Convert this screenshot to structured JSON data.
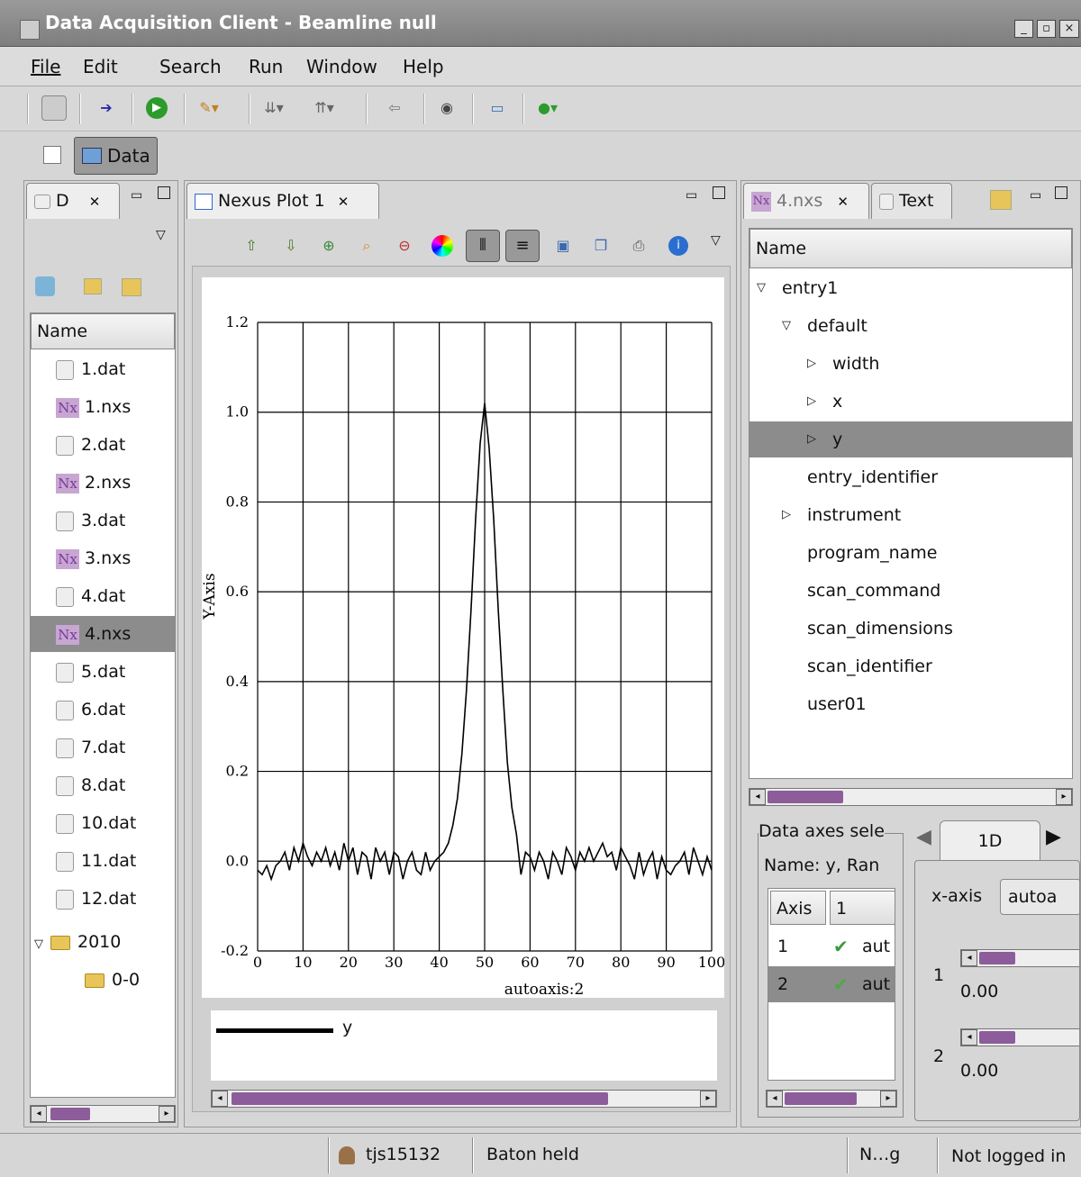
{
  "window": {
    "title": "Data Acquisition Client - Beamline null",
    "buttons": [
      "_",
      "▫",
      "×"
    ]
  },
  "menu": [
    "File",
    "Edit",
    "Search",
    "Run",
    "Window",
    "Help"
  ],
  "perspective": {
    "label": "Data"
  },
  "left_panel": {
    "tab_label": "D",
    "column_header": "Name",
    "files": [
      {
        "name": "1.dat",
        "icon": "dat-file-icon"
      },
      {
        "name": "1.nxs",
        "icon": "nexus-file-icon"
      },
      {
        "name": "2.dat",
        "icon": "dat-file-icon"
      },
      {
        "name": "2.nxs",
        "icon": "nexus-file-icon"
      },
      {
        "name": "3.dat",
        "icon": "dat-file-icon"
      },
      {
        "name": "3.nxs",
        "icon": "nexus-file-icon"
      },
      {
        "name": "4.dat",
        "icon": "dat-file-icon"
      },
      {
        "name": "4.nxs",
        "icon": "nexus-file-icon",
        "selected": true
      },
      {
        "name": "5.dat",
        "icon": "dat-file-icon"
      },
      {
        "name": "6.dat",
        "icon": "dat-file-icon"
      },
      {
        "name": "7.dat",
        "icon": "dat-file-icon"
      },
      {
        "name": "8.dat",
        "icon": "dat-file-icon"
      },
      {
        "name": "10.dat",
        "icon": "dat-file-icon"
      },
      {
        "name": "11.dat",
        "icon": "dat-file-icon"
      },
      {
        "name": "12.dat",
        "icon": "dat-file-icon"
      }
    ],
    "folder": "2010",
    "subfolder": "0-0",
    "nx_glyph": "Nx"
  },
  "plot_panel": {
    "tab_label": "Nexus Plot 1",
    "legend_label": "y"
  },
  "chart_data": {
    "type": "line",
    "xlabel": "autoaxis:2",
    "ylabel": "Y-Axis",
    "xlim": [
      0,
      100
    ],
    "ylim": [
      -0.2,
      1.2
    ],
    "xticks": [
      "0",
      "10",
      "20",
      "30",
      "40",
      "50",
      "60",
      "70",
      "80",
      "90",
      "100"
    ],
    "yticks": [
      "-0.2",
      "0.0",
      "0.2",
      "0.4",
      "0.6",
      "0.8",
      "1.0",
      "1.2"
    ],
    "grid": true,
    "series": [
      {
        "name": "y",
        "x": [
          0,
          1,
          2,
          3,
          4,
          5,
          6,
          7,
          8,
          9,
          10,
          11,
          12,
          13,
          14,
          15,
          16,
          17,
          18,
          19,
          20,
          21,
          22,
          23,
          24,
          25,
          26,
          27,
          28,
          29,
          30,
          31,
          32,
          33,
          34,
          35,
          36,
          37,
          38,
          39,
          40,
          41,
          42,
          43,
          44,
          45,
          46,
          47,
          48,
          49,
          50,
          51,
          52,
          53,
          54,
          55,
          56,
          57,
          58,
          59,
          60,
          61,
          62,
          63,
          64,
          65,
          66,
          67,
          68,
          69,
          70,
          71,
          72,
          73,
          74,
          75,
          76,
          77,
          78,
          79,
          80,
          81,
          82,
          83,
          84,
          85,
          86,
          87,
          88,
          89,
          90,
          91,
          92,
          93,
          94,
          95,
          96,
          97,
          98,
          99,
          100
        ],
        "values": [
          -0.02,
          -0.03,
          -0.01,
          -0.04,
          -0.01,
          0.0,
          0.02,
          -0.02,
          0.03,
          0.0,
          0.04,
          0.01,
          -0.01,
          0.02,
          0.0,
          0.03,
          -0.01,
          0.02,
          -0.02,
          0.04,
          0.0,
          0.03,
          -0.03,
          0.02,
          0.01,
          -0.04,
          0.03,
          0.0,
          0.02,
          -0.03,
          0.02,
          0.01,
          -0.04,
          0.0,
          0.02,
          -0.02,
          -0.03,
          0.02,
          -0.02,
          0.0,
          0.01,
          0.02,
          0.04,
          0.08,
          0.14,
          0.24,
          0.38,
          0.56,
          0.76,
          0.93,
          1.02,
          0.92,
          0.76,
          0.56,
          0.38,
          0.22,
          0.12,
          0.06,
          -0.03,
          0.02,
          0.01,
          -0.02,
          0.02,
          0.0,
          -0.04,
          0.02,
          0.0,
          -0.03,
          0.03,
          0.01,
          -0.02,
          0.02,
          0.0,
          0.03,
          0.0,
          0.02,
          0.04,
          0.01,
          0.02,
          -0.02,
          0.03,
          0.01,
          -0.01,
          -0.04,
          0.02,
          -0.03,
          0.0,
          0.02,
          -0.04,
          0.01,
          -0.02,
          -0.03,
          -0.01,
          0.0,
          0.02,
          -0.03,
          0.03,
          0.0,
          -0.03,
          0.01,
          -0.02
        ]
      }
    ]
  },
  "right_panel": {
    "tabs": [
      {
        "label": "4.nxs"
      },
      {
        "label": "Text"
      }
    ],
    "column_header": "Name",
    "tree": [
      {
        "label": "entry1",
        "expander": "▽",
        "level": 0
      },
      {
        "label": "default",
        "expander": "▽",
        "level": 1
      },
      {
        "label": "width",
        "expander": "▷",
        "level": 2
      },
      {
        "label": "x",
        "expander": "▷",
        "level": 2
      },
      {
        "label": "y",
        "expander": "▷",
        "level": 2,
        "selected": true
      },
      {
        "label": "entry_identifier",
        "expander": "",
        "level": 1
      },
      {
        "label": "instrument",
        "expander": "▷",
        "level": 1
      },
      {
        "label": "program_name",
        "expander": "",
        "level": 1
      },
      {
        "label": "scan_command",
        "expander": "",
        "level": 1
      },
      {
        "label": "scan_dimensions",
        "expander": "",
        "level": 1
      },
      {
        "label": "scan_identifier",
        "expander": "",
        "level": 1
      },
      {
        "label": "user01",
        "expander": "",
        "level": 1
      }
    ],
    "axes": {
      "group_label": "Data axes sele",
      "name_label": "Name: y, Ran",
      "columns": [
        "Axis",
        "1"
      ],
      "rows": [
        {
          "axis": "1",
          "value": "aut"
        },
        {
          "axis": "2",
          "value": "aut",
          "selected": true
        }
      ]
    },
    "dim_tab": "1D",
    "xaxis_label": "x-axis",
    "xaxis_value": "autoa",
    "sliders": [
      {
        "index": "1",
        "value": "0.00"
      },
      {
        "index": "2",
        "value": "0.00"
      }
    ]
  },
  "status": {
    "user": "tjs15132",
    "baton": "Baton held",
    "n": "N…g",
    "login": "Not logged in"
  }
}
